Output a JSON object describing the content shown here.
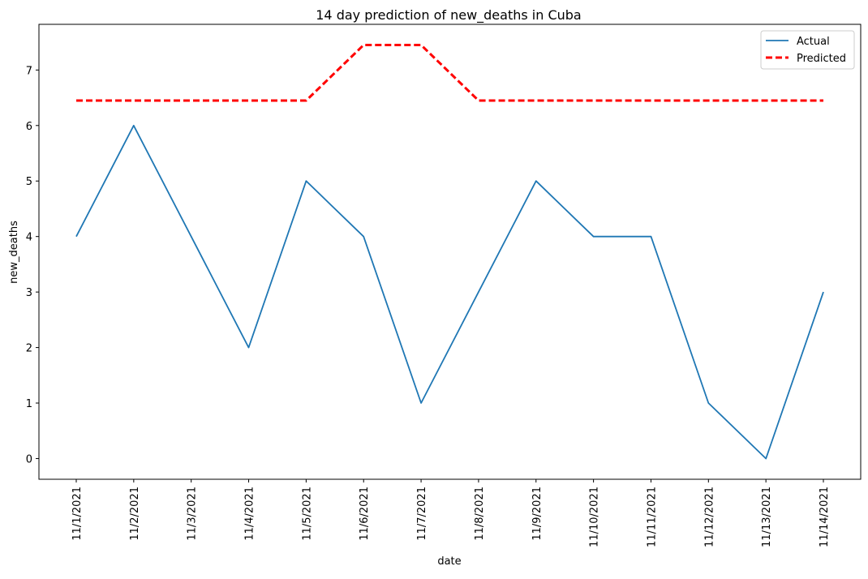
{
  "chart_data": {
    "type": "line",
    "title": "14 day prediction of new_deaths in Cuba",
    "xlabel": "date",
    "ylabel": "new_deaths",
    "categories": [
      "11/1/2021",
      "11/2/2021",
      "11/3/2021",
      "11/4/2021",
      "11/5/2021",
      "11/6/2021",
      "11/7/2021",
      "11/8/2021",
      "11/9/2021",
      "11/10/2021",
      "11/11/2021",
      "11/12/2021",
      "11/13/2021",
      "11/14/2021"
    ],
    "series": [
      {
        "name": "Actual",
        "values": [
          4,
          6,
          4,
          2,
          5,
          4,
          1,
          3,
          5,
          4,
          4,
          1,
          0,
          3
        ],
        "color": "#1f77b4",
        "style": "solid"
      },
      {
        "name": "Predicted",
        "values": [
          6.45,
          6.45,
          6.45,
          6.45,
          6.45,
          7.45,
          7.45,
          6.45,
          6.45,
          6.45,
          6.45,
          6.45,
          6.45,
          6.45
        ],
        "color": "#ff0000",
        "style": "dashed"
      }
    ],
    "yticks": [
      0,
      1,
      2,
      3,
      4,
      5,
      6,
      7
    ],
    "ylim": [
      -0.373,
      7.823
    ],
    "grid": false,
    "legend_position": "top-right"
  }
}
